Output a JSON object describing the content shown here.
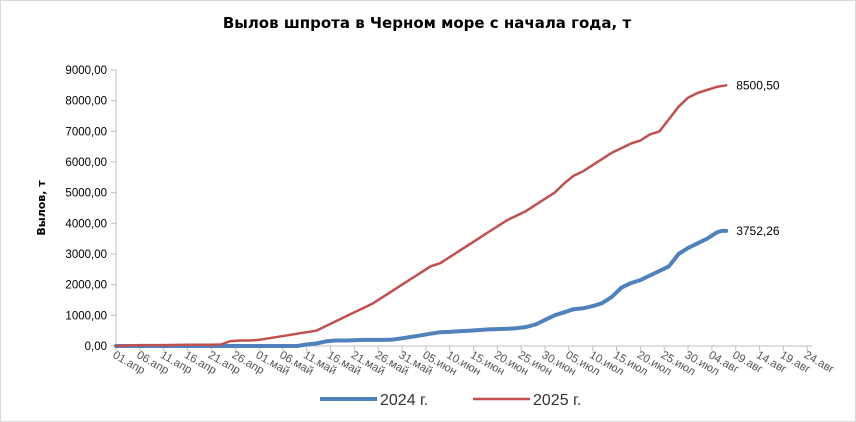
{
  "chart_data": {
    "type": "line",
    "title": "Вылов шпрота в Черном море с начала года, т",
    "ylabel": "Вылов, т",
    "ylim": [
      0,
      9000
    ],
    "yticks": [
      "0,00",
      "1000,00",
      "2000,00",
      "3000,00",
      "4000,00",
      "5000,00",
      "6000,00",
      "7000,00",
      "8000,00",
      "9000,00"
    ],
    "xlim": [
      0,
      146
    ],
    "xticks": [
      {
        "day": 0,
        "label": "01.апр"
      },
      {
        "day": 5,
        "label": "06.апр"
      },
      {
        "day": 10,
        "label": "11.апр"
      },
      {
        "day": 15,
        "label": "16.апр"
      },
      {
        "day": 20,
        "label": "21.апр"
      },
      {
        "day": 25,
        "label": "26.апр"
      },
      {
        "day": 30,
        "label": "01.май"
      },
      {
        "day": 35,
        "label": "06.май"
      },
      {
        "day": 40,
        "label": "11.май"
      },
      {
        "day": 45,
        "label": "16.май"
      },
      {
        "day": 50,
        "label": "21.май"
      },
      {
        "day": 55,
        "label": "26.май"
      },
      {
        "day": 60,
        "label": "31.май"
      },
      {
        "day": 65,
        "label": "05.июн"
      },
      {
        "day": 70,
        "label": "10.июн"
      },
      {
        "day": 75,
        "label": "15.июн"
      },
      {
        "day": 80,
        "label": "20.июн"
      },
      {
        "day": 85,
        "label": "25.июн"
      },
      {
        "day": 90,
        "label": "30.июн"
      },
      {
        "day": 95,
        "label": "05.июл"
      },
      {
        "day": 100,
        "label": "10.июл"
      },
      {
        "day": 105,
        "label": "15.июл"
      },
      {
        "day": 110,
        "label": "20.июл"
      },
      {
        "day": 115,
        "label": "25.июл"
      },
      {
        "day": 120,
        "label": "30.июл"
      },
      {
        "day": 125,
        "label": "04.авг"
      },
      {
        "day": 130,
        "label": "09.авг"
      },
      {
        "day": 135,
        "label": "14.авг"
      },
      {
        "day": 140,
        "label": "19.авг"
      },
      {
        "day": 145,
        "label": "24.авг"
      }
    ],
    "series": [
      {
        "name": "2024 г.",
        "color": "#4F81BD",
        "width": 4,
        "end_label": "3752,26",
        "points": [
          [
            0,
            0
          ],
          [
            10,
            0
          ],
          [
            20,
            0
          ],
          [
            30,
            0
          ],
          [
            35,
            0
          ],
          [
            38,
            0
          ],
          [
            40,
            50
          ],
          [
            42,
            80
          ],
          [
            44,
            150
          ],
          [
            46,
            180
          ],
          [
            48,
            180
          ],
          [
            50,
            190
          ],
          [
            52,
            200
          ],
          [
            54,
            200
          ],
          [
            56,
            200
          ],
          [
            58,
            210
          ],
          [
            60,
            250
          ],
          [
            62,
            300
          ],
          [
            64,
            350
          ],
          [
            66,
            400
          ],
          [
            68,
            450
          ],
          [
            70,
            460
          ],
          [
            72,
            480
          ],
          [
            74,
            500
          ],
          [
            76,
            520
          ],
          [
            78,
            540
          ],
          [
            80,
            550
          ],
          [
            82,
            560
          ],
          [
            84,
            580
          ],
          [
            86,
            620
          ],
          [
            88,
            700
          ],
          [
            90,
            850
          ],
          [
            92,
            1000
          ],
          [
            94,
            1100
          ],
          [
            96,
            1200
          ],
          [
            98,
            1230
          ],
          [
            100,
            1300
          ],
          [
            102,
            1400
          ],
          [
            104,
            1600
          ],
          [
            106,
            1900
          ],
          [
            108,
            2050
          ],
          [
            110,
            2150
          ],
          [
            112,
            2300
          ],
          [
            114,
            2450
          ],
          [
            116,
            2600
          ],
          [
            118,
            3000
          ],
          [
            120,
            3200
          ],
          [
            122,
            3350
          ],
          [
            124,
            3500
          ],
          [
            126,
            3700
          ],
          [
            127,
            3752.26
          ],
          [
            128,
            3752.26
          ]
        ]
      },
      {
        "name": "2025 г.",
        "color": "#C0504D",
        "width": 2.5,
        "end_label": "8500,50",
        "points": [
          [
            0,
            0
          ],
          [
            5,
            30
          ],
          [
            10,
            30
          ],
          [
            15,
            40
          ],
          [
            20,
            40
          ],
          [
            22,
            50
          ],
          [
            24,
            160
          ],
          [
            26,
            180
          ],
          [
            28,
            180
          ],
          [
            30,
            200
          ],
          [
            32,
            250
          ],
          [
            34,
            300
          ],
          [
            36,
            350
          ],
          [
            38,
            400
          ],
          [
            40,
            450
          ],
          [
            42,
            500
          ],
          [
            44,
            650
          ],
          [
            46,
            800
          ],
          [
            48,
            950
          ],
          [
            50,
            1100
          ],
          [
            52,
            1250
          ],
          [
            54,
            1400
          ],
          [
            56,
            1600
          ],
          [
            58,
            1800
          ],
          [
            60,
            2000
          ],
          [
            62,
            2200
          ],
          [
            64,
            2400
          ],
          [
            66,
            2600
          ],
          [
            68,
            2700
          ],
          [
            70,
            2900
          ],
          [
            72,
            3100
          ],
          [
            74,
            3300
          ],
          [
            76,
            3500
          ],
          [
            78,
            3700
          ],
          [
            80,
            3900
          ],
          [
            82,
            4100
          ],
          [
            84,
            4250
          ],
          [
            86,
            4400
          ],
          [
            88,
            4600
          ],
          [
            90,
            4800
          ],
          [
            92,
            5000
          ],
          [
            94,
            5300
          ],
          [
            96,
            5550
          ],
          [
            98,
            5700
          ],
          [
            100,
            5900
          ],
          [
            102,
            6100
          ],
          [
            104,
            6300
          ],
          [
            106,
            6450
          ],
          [
            108,
            6600
          ],
          [
            110,
            6700
          ],
          [
            112,
            6900
          ],
          [
            114,
            7000
          ],
          [
            116,
            7400
          ],
          [
            118,
            7800
          ],
          [
            120,
            8100
          ],
          [
            122,
            8250
          ],
          [
            124,
            8350
          ],
          [
            126,
            8450
          ],
          [
            128,
            8500.5
          ]
        ]
      }
    ],
    "legend_position": "bottom",
    "grid": false
  }
}
